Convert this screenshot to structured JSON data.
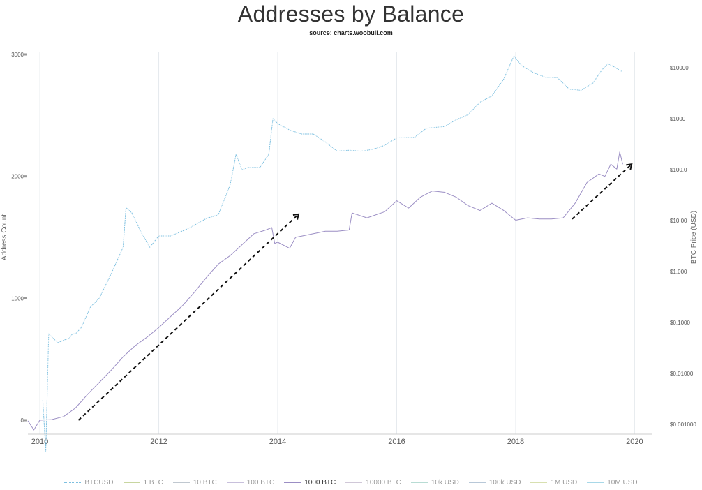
{
  "chart_data": {
    "type": "line",
    "title": "Addresses by Balance",
    "subtitle": "source: charts.woobull.com",
    "ylabel": "Address Count",
    "y2label": "BTC Price (USD)",
    "xlim": [
      2009.8,
      2020.3
    ],
    "ylim": [
      -100,
      3000
    ],
    "y2scale": "log",
    "y2lim": [
      0.001,
      12000
    ],
    "x_ticks": [
      2010,
      2012,
      2014,
      2016,
      2018,
      2020
    ],
    "x_tick_labels": [
      "2010",
      "2012",
      "2014",
      "2016",
      "2018",
      "2020"
    ],
    "y_ticks": [
      0,
      1000,
      2000,
      3000
    ],
    "y_tick_labels": [
      "0",
      "1000",
      "2000",
      "3000"
    ],
    "y2_ticks": [
      0.001,
      0.01,
      0.1,
      1,
      10,
      100,
      1000,
      10000
    ],
    "y2_tick_labels": [
      "$0.001000",
      "$0.01000",
      "$0.1000",
      "$1.000",
      "$10.00",
      "$100.0",
      "$1000",
      "$10000"
    ],
    "grid": "vertical",
    "legend_position": "bottom",
    "legend": [
      {
        "name": "BTCUSD",
        "color": "#7ec0e0",
        "style": "dotted",
        "active": false
      },
      {
        "name": "1 BTC",
        "color": "#c8d6a0",
        "style": "solid",
        "active": false
      },
      {
        "name": "10 BTC",
        "color": "#c0c8d0",
        "style": "solid",
        "active": false
      },
      {
        "name": "100 BTC",
        "color": "#c8c0dc",
        "style": "solid",
        "active": false
      },
      {
        "name": "1000 BTC",
        "color": "#9b8ec4",
        "style": "solid",
        "active": true
      },
      {
        "name": "10000 BTC",
        "color": "#d0c8d8",
        "style": "solid",
        "active": false
      },
      {
        "name": "10k USD",
        "color": "#b8dcd4",
        "style": "solid",
        "active": false
      },
      {
        "name": "100k USD",
        "color": "#b8c8d8",
        "style": "solid",
        "active": false
      },
      {
        "name": "1M USD",
        "color": "#d8e0b0",
        "style": "solid",
        "active": false
      },
      {
        "name": "10M USD",
        "color": "#a8d8e8",
        "style": "solid",
        "active": false
      }
    ],
    "series": [
      {
        "name": "1000 BTC",
        "axis": "left",
        "color": "#9b8ec4",
        "points": [
          [
            2009.8,
            -5
          ],
          [
            2009.9,
            -80
          ],
          [
            2010.0,
            0
          ],
          [
            2010.2,
            5
          ],
          [
            2010.4,
            30
          ],
          [
            2010.6,
            100
          ],
          [
            2010.8,
            210
          ],
          [
            2011.0,
            310
          ],
          [
            2011.2,
            410
          ],
          [
            2011.4,
            520
          ],
          [
            2011.6,
            610
          ],
          [
            2011.8,
            680
          ],
          [
            2012.0,
            760
          ],
          [
            2012.2,
            850
          ],
          [
            2012.4,
            940
          ],
          [
            2012.6,
            1050
          ],
          [
            2012.8,
            1170
          ],
          [
            2013.0,
            1280
          ],
          [
            2013.2,
            1350
          ],
          [
            2013.4,
            1440
          ],
          [
            2013.6,
            1530
          ],
          [
            2013.8,
            1560
          ],
          [
            2013.9,
            1580
          ],
          [
            2013.95,
            1450
          ],
          [
            2014.0,
            1460
          ],
          [
            2014.2,
            1410
          ],
          [
            2014.3,
            1500
          ],
          [
            2014.5,
            1520
          ],
          [
            2014.8,
            1550
          ],
          [
            2015.0,
            1550
          ],
          [
            2015.2,
            1560
          ],
          [
            2015.25,
            1700
          ],
          [
            2015.5,
            1660
          ],
          [
            2015.8,
            1710
          ],
          [
            2016.0,
            1800
          ],
          [
            2016.2,
            1740
          ],
          [
            2016.4,
            1830
          ],
          [
            2016.6,
            1880
          ],
          [
            2016.8,
            1870
          ],
          [
            2017.0,
            1830
          ],
          [
            2017.2,
            1760
          ],
          [
            2017.4,
            1720
          ],
          [
            2017.6,
            1780
          ],
          [
            2017.8,
            1720
          ],
          [
            2018.0,
            1640
          ],
          [
            2018.2,
            1660
          ],
          [
            2018.4,
            1650
          ],
          [
            2018.6,
            1650
          ],
          [
            2018.8,
            1660
          ],
          [
            2019.0,
            1780
          ],
          [
            2019.2,
            1950
          ],
          [
            2019.4,
            2020
          ],
          [
            2019.5,
            2000
          ],
          [
            2019.6,
            2100
          ],
          [
            2019.7,
            2060
          ],
          [
            2019.75,
            2200
          ],
          [
            2019.8,
            2100
          ]
        ]
      },
      {
        "name": "BTCUSD",
        "axis": "right",
        "color": "#7ec0e0",
        "points": [
          [
            2010.05,
            0.003
          ],
          [
            2010.1,
            0.0003
          ],
          [
            2010.15,
            0.06
          ],
          [
            2010.3,
            0.04
          ],
          [
            2010.5,
            0.05
          ],
          [
            2010.55,
            0.06
          ],
          [
            2010.6,
            0.06
          ],
          [
            2010.7,
            0.08
          ],
          [
            2010.85,
            0.2
          ],
          [
            2011.0,
            0.3
          ],
          [
            2011.2,
            0.9
          ],
          [
            2011.4,
            3
          ],
          [
            2011.45,
            18
          ],
          [
            2011.55,
            14
          ],
          [
            2011.7,
            6
          ],
          [
            2011.85,
            3
          ],
          [
            2012.0,
            5
          ],
          [
            2012.2,
            5
          ],
          [
            2012.5,
            7
          ],
          [
            2012.8,
            11
          ],
          [
            2013.0,
            13
          ],
          [
            2013.2,
            50
          ],
          [
            2013.3,
            200
          ],
          [
            2013.4,
            100
          ],
          [
            2013.5,
            110
          ],
          [
            2013.7,
            110
          ],
          [
            2013.85,
            200
          ],
          [
            2013.92,
            1000
          ],
          [
            2014.0,
            800
          ],
          [
            2014.2,
            600
          ],
          [
            2014.4,
            500
          ],
          [
            2014.6,
            500
          ],
          [
            2014.8,
            350
          ],
          [
            2015.0,
            230
          ],
          [
            2015.2,
            240
          ],
          [
            2015.4,
            230
          ],
          [
            2015.6,
            250
          ],
          [
            2015.8,
            300
          ],
          [
            2016.0,
            420
          ],
          [
            2016.3,
            430
          ],
          [
            2016.5,
            650
          ],
          [
            2016.8,
            700
          ],
          [
            2017.0,
            950
          ],
          [
            2017.2,
            1200
          ],
          [
            2017.4,
            2100
          ],
          [
            2017.6,
            2800
          ],
          [
            2017.8,
            6000
          ],
          [
            2017.97,
            17000
          ],
          [
            2018.1,
            11000
          ],
          [
            2018.3,
            8000
          ],
          [
            2018.5,
            6500
          ],
          [
            2018.7,
            6400
          ],
          [
            2018.9,
            3800
          ],
          [
            2019.1,
            3600
          ],
          [
            2019.3,
            5000
          ],
          [
            2019.45,
            9000
          ],
          [
            2019.55,
            12000
          ],
          [
            2019.65,
            10500
          ],
          [
            2019.78,
            8500
          ]
        ]
      }
    ],
    "annotations": [
      {
        "type": "dashed-arrow",
        "from": [
          2010.65,
          0
        ],
        "to": [
          2014.35,
          1690
        ]
      },
      {
        "type": "dashed-arrow",
        "from": [
          2018.95,
          1650
        ],
        "to": [
          2019.95,
          2100
        ]
      }
    ]
  }
}
